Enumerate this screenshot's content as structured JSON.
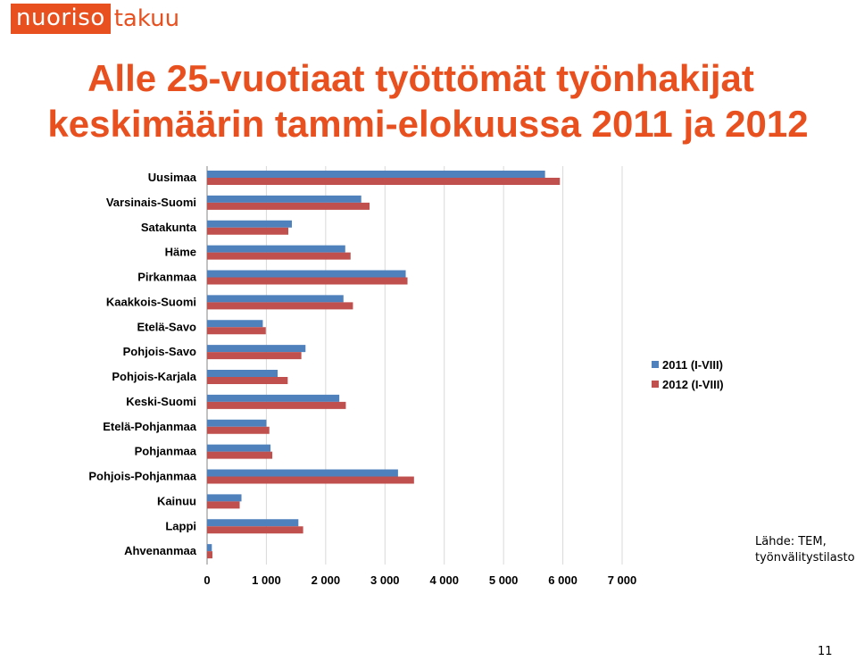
{
  "logo": {
    "part1": "nuoriso",
    "part2": "takuu"
  },
  "title_line1": "Alle 25-vuotiaat työttömät työnhakijat",
  "title_line2": "keskimäärin tammi-elokuussa 2011 ja 2012",
  "source": {
    "line1": "Lähde: TEM,",
    "line2": "työnvälitystilasto"
  },
  "page_number": "11",
  "chart_data": {
    "type": "bar",
    "orientation": "horizontal",
    "categories": [
      "Uusimaa",
      "Varsinais-Suomi",
      "Satakunta",
      "Häme",
      "Pirkanmaa",
      "Kaakkois-Suomi",
      "Etelä-Savo",
      "Pohjois-Savo",
      "Pohjois-Karjala",
      "Keski-Suomi",
      "Etelä-Pohjanmaa",
      "Pohjanmaa",
      "Pohjois-Pohjanmaa",
      "Kainuu",
      "Lappi",
      "Ahvenanmaa"
    ],
    "series": [
      {
        "name": "2011 (I-VIII)",
        "color": "#4f81bd",
        "values": [
          5700,
          2600,
          1430,
          2330,
          3350,
          2300,
          940,
          1660,
          1190,
          2230,
          1000,
          1070,
          3220,
          580,
          1540,
          80
        ]
      },
      {
        "name": "2012 (I-VIII)",
        "color": "#c0504d",
        "values": [
          5950,
          2740,
          1370,
          2420,
          3380,
          2460,
          990,
          1590,
          1360,
          2340,
          1050,
          1100,
          3490,
          550,
          1620,
          90
        ]
      }
    ],
    "xlim": [
      0,
      7000
    ],
    "xticks": [
      "0",
      "1 000",
      "2 000",
      "3 000",
      "4 000",
      "5 000",
      "6 000",
      "7 000"
    ],
    "grid": "vertical",
    "legend_position": "right"
  }
}
